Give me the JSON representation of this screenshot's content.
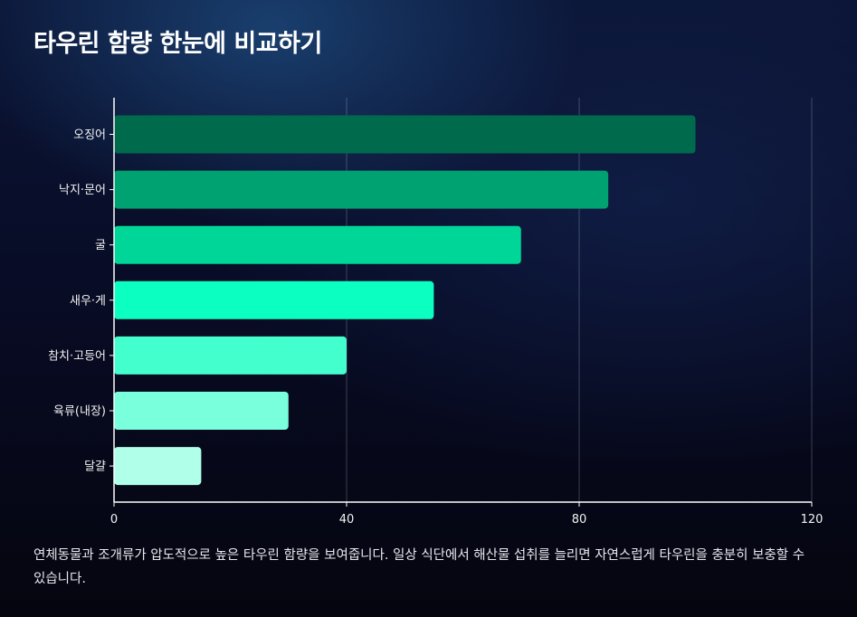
{
  "chart_data": {
    "type": "bar",
    "orientation": "horizontal",
    "title": "타우린 함량 한눈에 비교하기",
    "categories": [
      "오징어",
      "낙지·문어",
      "굴",
      "새우·게",
      "참치·고등어",
      "육류(내장)",
      "달걀"
    ],
    "values": [
      100,
      85,
      70,
      55,
      40,
      30,
      15
    ],
    "colors": [
      "#006b4c",
      "#00a271",
      "#00d698",
      "#0affc0",
      "#42ffcd",
      "#7affdc",
      "#b0ffe9"
    ],
    "xlim": [
      0,
      120
    ],
    "xticks": [
      0,
      40,
      80,
      120
    ],
    "xlabel": "",
    "ylabel": "",
    "grid": "vertical"
  },
  "caption": "연체동물과 조개류가 압도적으로 높은 타우린 함량을 보여줍니다. 일상 식단에서 해산물 섭취를 늘리면 자연스럽게 타우린을 충분히 보충할 수 있습니다."
}
